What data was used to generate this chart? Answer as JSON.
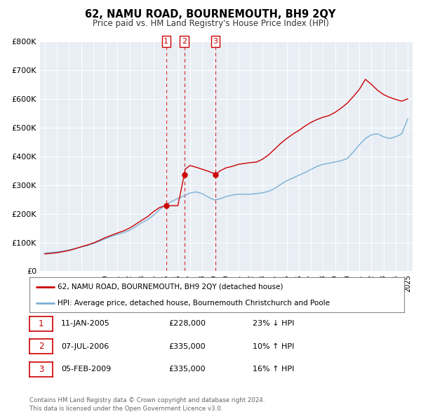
{
  "title": "62, NAMU ROAD, BOURNEMOUTH, BH9 2QY",
  "subtitle": "Price paid vs. HM Land Registry's House Price Index (HPI)",
  "background_color": "#ffffff",
  "red_line_color": "#cc0000",
  "blue_line_color": "#7ab0d4",
  "sale_marker_color": "#cc0000",
  "transactions": [
    {
      "year": 2005.03,
      "price": 228000,
      "label": "1"
    },
    {
      "year": 2006.52,
      "price": 335000,
      "label": "2"
    },
    {
      "year": 2009.09,
      "price": 335000,
      "label": "3"
    }
  ],
  "legend_entries": [
    "62, NAMU ROAD, BOURNEMOUTH, BH9 2QY (detached house)",
    "HPI: Average price, detached house, Bournemouth Christchurch and Poole"
  ],
  "table_rows": [
    [
      "1",
      "11-JAN-2005",
      "£228,000",
      "23% ↓ HPI"
    ],
    [
      "2",
      "07-JUL-2006",
      "£335,000",
      "10% ↑ HPI"
    ],
    [
      "3",
      "05-FEB-2009",
      "£335,000",
      "16% ↑ HPI"
    ]
  ],
  "footer": "Contains HM Land Registry data © Crown copyright and database right 2024.\nThis data is licensed under the Open Government Licence v3.0.",
  "ylim": [
    0,
    800000
  ],
  "yticks": [
    0,
    100000,
    200000,
    300000,
    400000,
    500000,
    600000,
    700000,
    800000
  ],
  "ytick_labels": [
    "£0",
    "£100K",
    "£200K",
    "£300K",
    "£400K",
    "£500K",
    "£600K",
    "£700K",
    "£800K"
  ],
  "hpi_x": [
    1995,
    1995.5,
    1996,
    1996.5,
    1997,
    1997.5,
    1998,
    1998.5,
    1999,
    1999.5,
    2000,
    2000.5,
    2001,
    2001.5,
    2002,
    2002.5,
    2003,
    2003.5,
    2004,
    2004.5,
    2005,
    2005.5,
    2006,
    2006.5,
    2007,
    2007.5,
    2008,
    2008.5,
    2009,
    2009.5,
    2010,
    2010.5,
    2011,
    2011.5,
    2012,
    2012.5,
    2013,
    2013.5,
    2014,
    2014.5,
    2015,
    2015.5,
    2016,
    2016.5,
    2017,
    2017.5,
    2018,
    2018.5,
    2019,
    2019.5,
    2020,
    2020.5,
    2021,
    2021.5,
    2022,
    2022.5,
    2023,
    2023.5,
    2024,
    2024.5,
    2025
  ],
  "hpi_y": [
    63000,
    65000,
    67000,
    70000,
    74000,
    79000,
    84000,
    89000,
    96000,
    104000,
    113000,
    121000,
    128000,
    134000,
    142000,
    155000,
    168000,
    180000,
    195000,
    215000,
    232000,
    243000,
    253000,
    262000,
    272000,
    276000,
    270000,
    258000,
    248000,
    252000,
    260000,
    265000,
    268000,
    268000,
    268000,
    270000,
    273000,
    278000,
    288000,
    302000,
    315000,
    324000,
    334000,
    343000,
    354000,
    365000,
    372000,
    376000,
    380000,
    385000,
    392000,
    415000,
    440000,
    462000,
    475000,
    478000,
    468000,
    462000,
    468000,
    478000,
    530000
  ],
  "prop_x": [
    1995,
    1995.5,
    1996,
    1996.5,
    1997,
    1997.5,
    1998,
    1998.5,
    1999,
    1999.5,
    2000,
    2000.5,
    2001,
    2001.5,
    2002,
    2002.5,
    2003,
    2003.5,
    2004,
    2004.5,
    2005,
    2005.03,
    2005.5,
    2006,
    2006.52,
    2006.6,
    2007,
    2007.5,
    2008,
    2008.5,
    2009,
    2009.09,
    2009.5,
    2010,
    2010.5,
    2011,
    2011.5,
    2012,
    2012.5,
    2013,
    2013.5,
    2014,
    2014.5,
    2015,
    2015.5,
    2016,
    2016.5,
    2017,
    2017.5,
    2018,
    2018.5,
    2019,
    2019.5,
    2020,
    2020.5,
    2021,
    2021.5,
    2022,
    2022.5,
    2023,
    2023.5,
    2024,
    2024.5,
    2025
  ],
  "prop_y": [
    60000,
    62000,
    64000,
    68000,
    72000,
    78000,
    85000,
    91000,
    98000,
    107000,
    117000,
    125000,
    133000,
    140000,
    150000,
    163000,
    177000,
    190000,
    208000,
    222000,
    228000,
    228000,
    228000,
    228000,
    335000,
    355000,
    368000,
    362000,
    355000,
    348000,
    340000,
    335000,
    350000,
    360000,
    365000,
    372000,
    375000,
    378000,
    380000,
    390000,
    405000,
    425000,
    445000,
    462000,
    477000,
    490000,
    505000,
    518000,
    528000,
    536000,
    542000,
    553000,
    568000,
    585000,
    608000,
    633000,
    668000,
    650000,
    630000,
    615000,
    605000,
    598000,
    592000,
    600000
  ]
}
